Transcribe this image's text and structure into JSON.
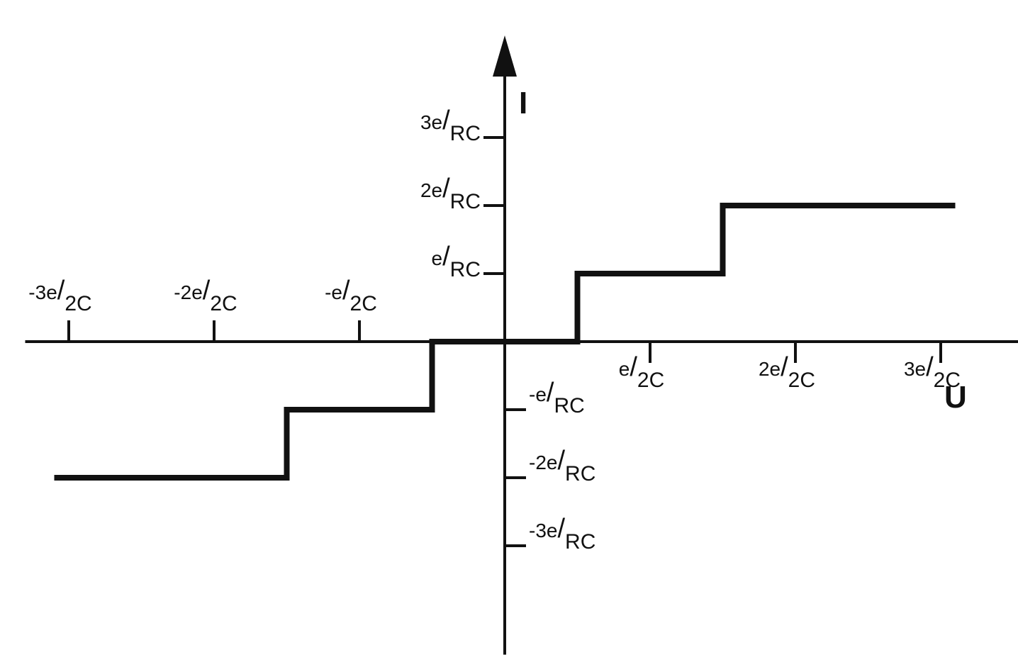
{
  "chart_data": {
    "type": "line",
    "title": "",
    "xlabel": "U",
    "ylabel": "I",
    "xlim": [
      -3.3,
      4.4
    ],
    "ylim": [
      -4.6,
      4.5
    ],
    "grid": false,
    "legend": "none",
    "x_ticks": [
      {
        "value": -3,
        "sup": "-3e",
        "sub": "2C"
      },
      {
        "value": -2,
        "sup": "-2e",
        "sub": "2C"
      },
      {
        "value": -1,
        "sup": "-e",
        "sub": "2C"
      },
      {
        "value": 1,
        "sup": "e",
        "sub": "2C"
      },
      {
        "value": 2,
        "sup": "2e",
        "sub": "2C"
      },
      {
        "value": 3,
        "sup": "3e",
        "sub": "2C"
      }
    ],
    "y_ticks": [
      {
        "value": 3,
        "sup": "3e",
        "sub": "RC"
      },
      {
        "value": 2,
        "sup": "2e",
        "sub": "RC"
      },
      {
        "value": 1,
        "sup": "e",
        "sub": "RC"
      },
      {
        "value": -1,
        "sup": "-e",
        "sub": "RC"
      },
      {
        "value": -2,
        "sup": "-2e",
        "sub": "RC"
      },
      {
        "value": -3,
        "sup": "-3e",
        "sub": "RC"
      }
    ],
    "series": [
      {
        "x": [
          -3.1,
          -1.5,
          -1.5,
          -0.5,
          -0.5,
          0.5,
          0.5,
          1.5,
          1.5,
          3.1
        ],
        "y": [
          -2,
          -2,
          -1,
          -1,
          0,
          0,
          1,
          1,
          2,
          2
        ]
      }
    ]
  }
}
